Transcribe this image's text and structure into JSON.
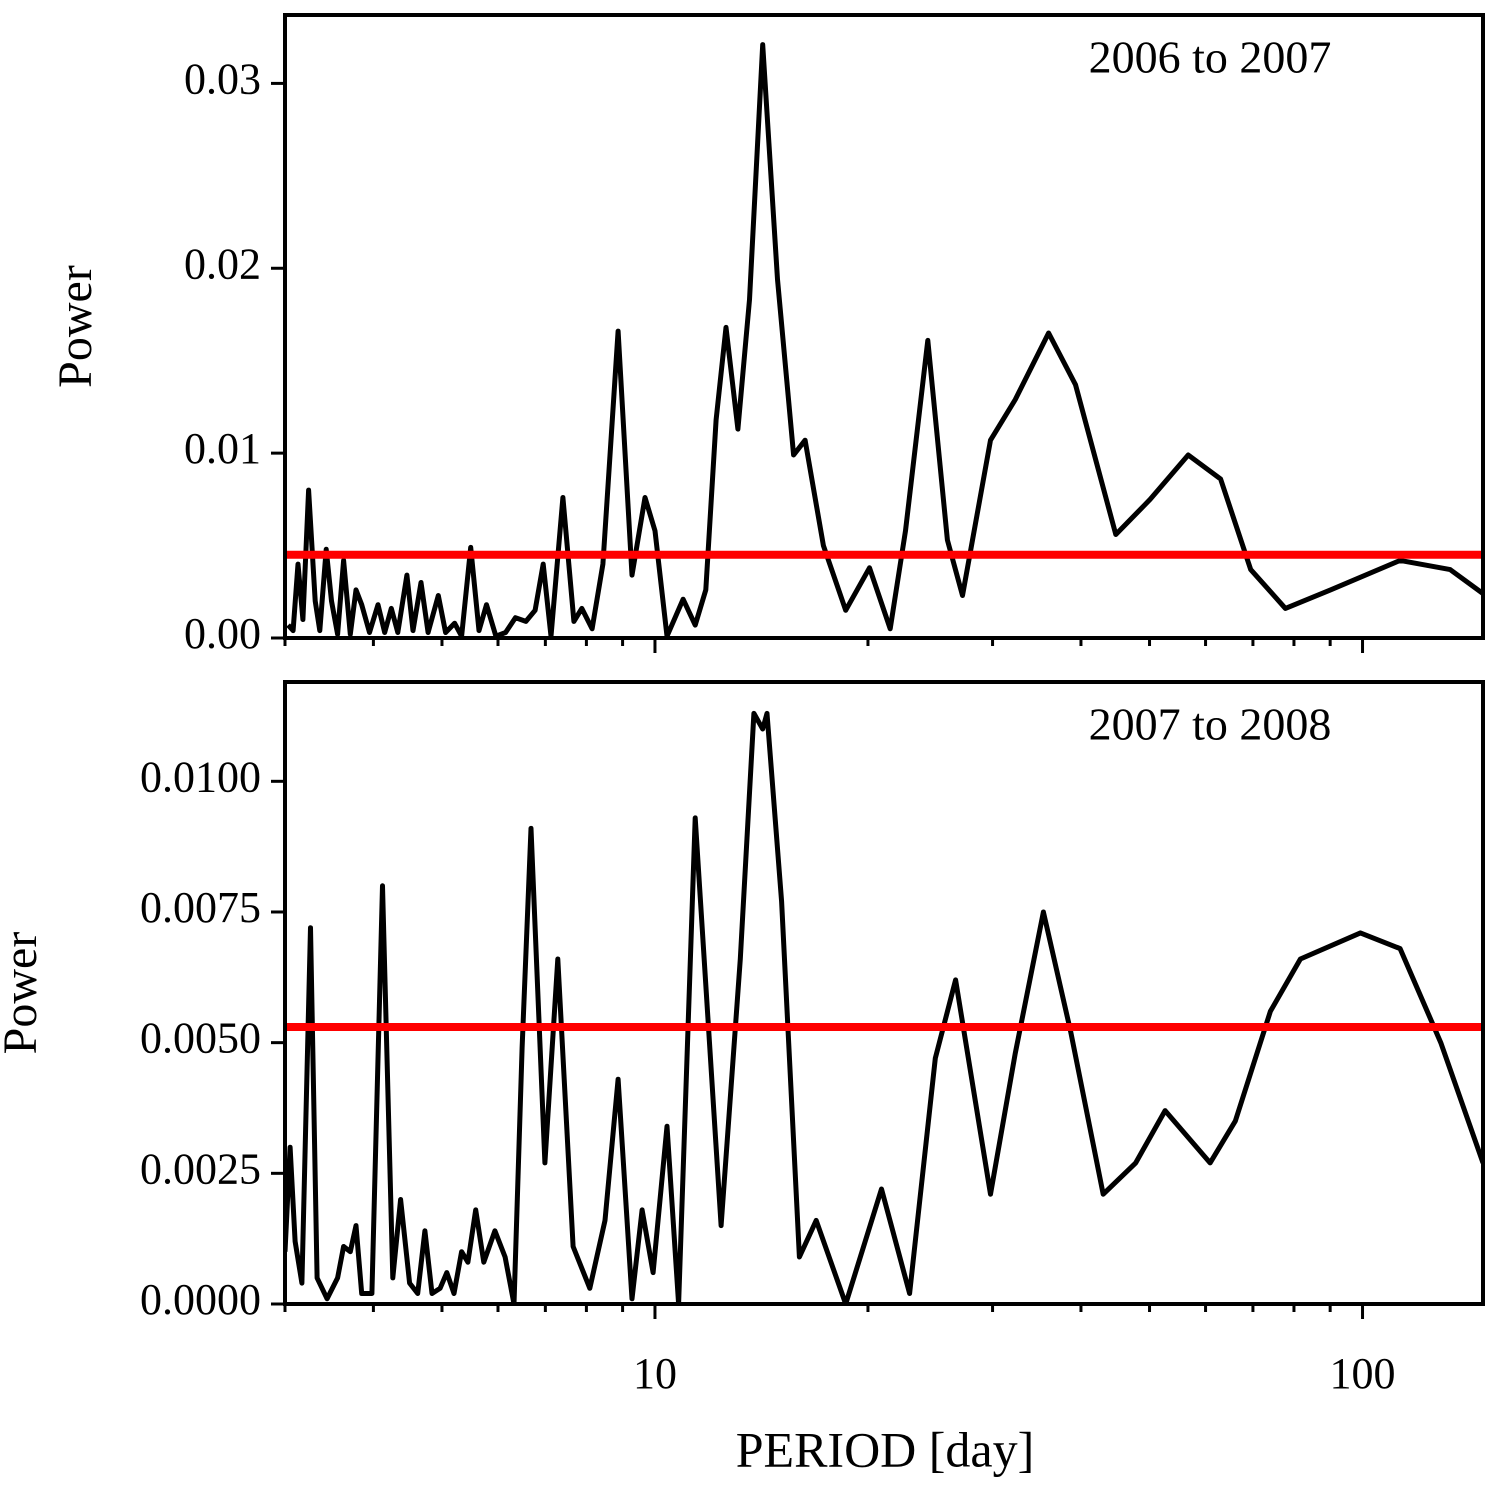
{
  "chart_data": [
    {
      "type": "line",
      "annotation": "2006 to 2007",
      "ylabel": "Power",
      "xscale": "log",
      "xlim": [
        3,
        148
      ],
      "ylim": [
        0,
        0.0337
      ],
      "yticks": [
        {
          "value": 0,
          "label": "0.00"
        },
        0.01,
        0.02,
        0.03
      ],
      "threshold": {
        "value": 0.0045,
        "color": "#ff0000"
      },
      "x": [
        3.03,
        3.08,
        3.13,
        3.18,
        3.24,
        3.31,
        3.36,
        3.43,
        3.49,
        3.56,
        3.63,
        3.71,
        3.78,
        3.85,
        3.95,
        4.06,
        4.15,
        4.24,
        4.33,
        4.46,
        4.55,
        4.67,
        4.78,
        4.94,
        5.06,
        5.21,
        5.33,
        5.49,
        5.64,
        5.78,
        5.96,
        6.15,
        6.35,
        6.57,
        6.77,
        6.95,
        7.13,
        7.41,
        7.68,
        7.88,
        8.15,
        8.44,
        8.87,
        9.28,
        9.68,
        10,
        10.4,
        10.96,
        11.4,
        11.8,
        12.2,
        12.6,
        13.1,
        13.6,
        14.2,
        14.9,
        15.7,
        16.3,
        17.3,
        18.6,
        20.1,
        21.5,
        22.6,
        24.3,
        25.9,
        27.2,
        29.8,
        32.3,
        36.0,
        39.3,
        44.8,
        50.1,
        56.7,
        63.0,
        69.5,
        77.8,
        90.1,
        113,
        133,
        148
      ],
      "series": [
        {
          "color": "#000000",
          "values": [
            0.0007,
            0.0004,
            0.004,
            0.001,
            0.008,
            0.002,
            0.0004,
            0.0048,
            0.002,
            0.0002,
            0.0042,
            0.0002,
            0.0026,
            0.0018,
            0.0003,
            0.0018,
            0.0003,
            0.0016,
            0.0003,
            0.0034,
            0.0004,
            0.003,
            0.0003,
            0.0023,
            0.0003,
            0.0008,
            0.0001,
            0.0049,
            0.0004,
            0.0018,
            0.0001,
            0.0003,
            0.0011,
            0.0009,
            0.0015,
            0.004,
            0.0001,
            0.0076,
            0.0009,
            0.0016,
            0.0005,
            0.004,
            0.0166,
            0.0034,
            0.0076,
            0.0058,
            0.0001,
            0.0021,
            0.0007,
            0.0026,
            0.0118,
            0.0168,
            0.0113,
            0.0183,
            0.0321,
            0.0194,
            0.0099,
            0.0107,
            0.005,
            0.0015,
            0.0038,
            0.0005,
            0.0058,
            0.0161,
            0.0053,
            0.0023,
            0.0107,
            0.0129,
            0.0165,
            0.0137,
            0.0056,
            0.0075,
            0.0099,
            0.0086,
            0.0037,
            0.0016,
            0.0026,
            0.0042,
            0.0037,
            0.0024
          ]
        }
      ]
    },
    {
      "type": "line",
      "annotation": "2007 to 2008",
      "ylabel": "Power",
      "xlabel": "PERIOD [day]",
      "xscale": "log",
      "xlim": [
        3,
        148
      ],
      "ylim": [
        0,
        0.0119
      ],
      "xticks": [
        10,
        100
      ],
      "xminorticks": [
        3,
        4,
        5,
        6,
        7,
        8,
        9,
        20,
        30,
        40,
        50,
        60,
        70,
        80,
        90
      ],
      "yticks": [
        {
          "value": 0,
          "label": "0.0000"
        },
        {
          "value": 0.0025,
          "label": "0.0025"
        },
        {
          "value": 0.005,
          "label": "0.0050"
        },
        {
          "value": 0.0075,
          "label": "0.0075"
        },
        {
          "value": 0.01,
          "label": "0.0100"
        }
      ],
      "threshold": {
        "value": 0.0053,
        "color": "#ff0000"
      },
      "x": [
        3.0,
        3.05,
        3.1,
        3.17,
        3.26,
        3.33,
        3.44,
        3.56,
        3.63,
        3.71,
        3.78,
        3.85,
        3.98,
        4.12,
        4.26,
        4.37,
        4.5,
        4.62,
        4.73,
        4.84,
        4.97,
        5.08,
        5.2,
        5.33,
        5.44,
        5.58,
        5.73,
        5.94,
        6.14,
        6.32,
        6.49,
        6.68,
        6.99,
        7.29,
        7.66,
        8.09,
        8.5,
        8.87,
        9.28,
        9.59,
        9.94,
        10.4,
        10.8,
        11.4,
        12.4,
        13.2,
        13.8,
        14.2,
        14.4,
        15.1,
        16.0,
        16.9,
        18.6,
        20.9,
        22.9,
        24.9,
        26.6,
        29.8,
        32.3,
        35.4,
        38.7,
        43.0,
        47.8,
        52.6,
        60.9,
        66.1,
        74.1,
        81.7,
        99.3,
        113,
        129,
        148
      ],
      "series": [
        {
          "color": "#000000",
          "values": [
            0.001,
            0.003,
            0.0012,
            0.0004,
            0.0072,
            0.0005,
            0.0001,
            0.0005,
            0.0011,
            0.001,
            0.0015,
            0.0002,
            0.0002,
            0.008,
            0.0005,
            0.002,
            0.0004,
            0.0002,
            0.0014,
            0.0002,
            0.0003,
            0.0006,
            0.0002,
            0.001,
            0.0008,
            0.0018,
            0.0008,
            0.0014,
            0.0009,
            0,
            0.0049,
            0.0091,
            0.0027,
            0.0066,
            0.0011,
            0.0003,
            0.0016,
            0.0043,
            0.0001,
            0.0018,
            0.0006,
            0.0034,
            0,
            0.0093,
            0.0015,
            0.0066,
            0.0113,
            0.011,
            0.0113,
            0.0077,
            0.0009,
            0.0016,
            0,
            0.0022,
            0.0002,
            0.0047,
            0.0062,
            0.0021,
            0.0048,
            0.0075,
            0.0052,
            0.0021,
            0.0027,
            0.0037,
            0.0027,
            0.0035,
            0.0056,
            0.0066,
            0.0071,
            0.0068,
            0.005,
            0.0027
          ]
        }
      ]
    }
  ]
}
